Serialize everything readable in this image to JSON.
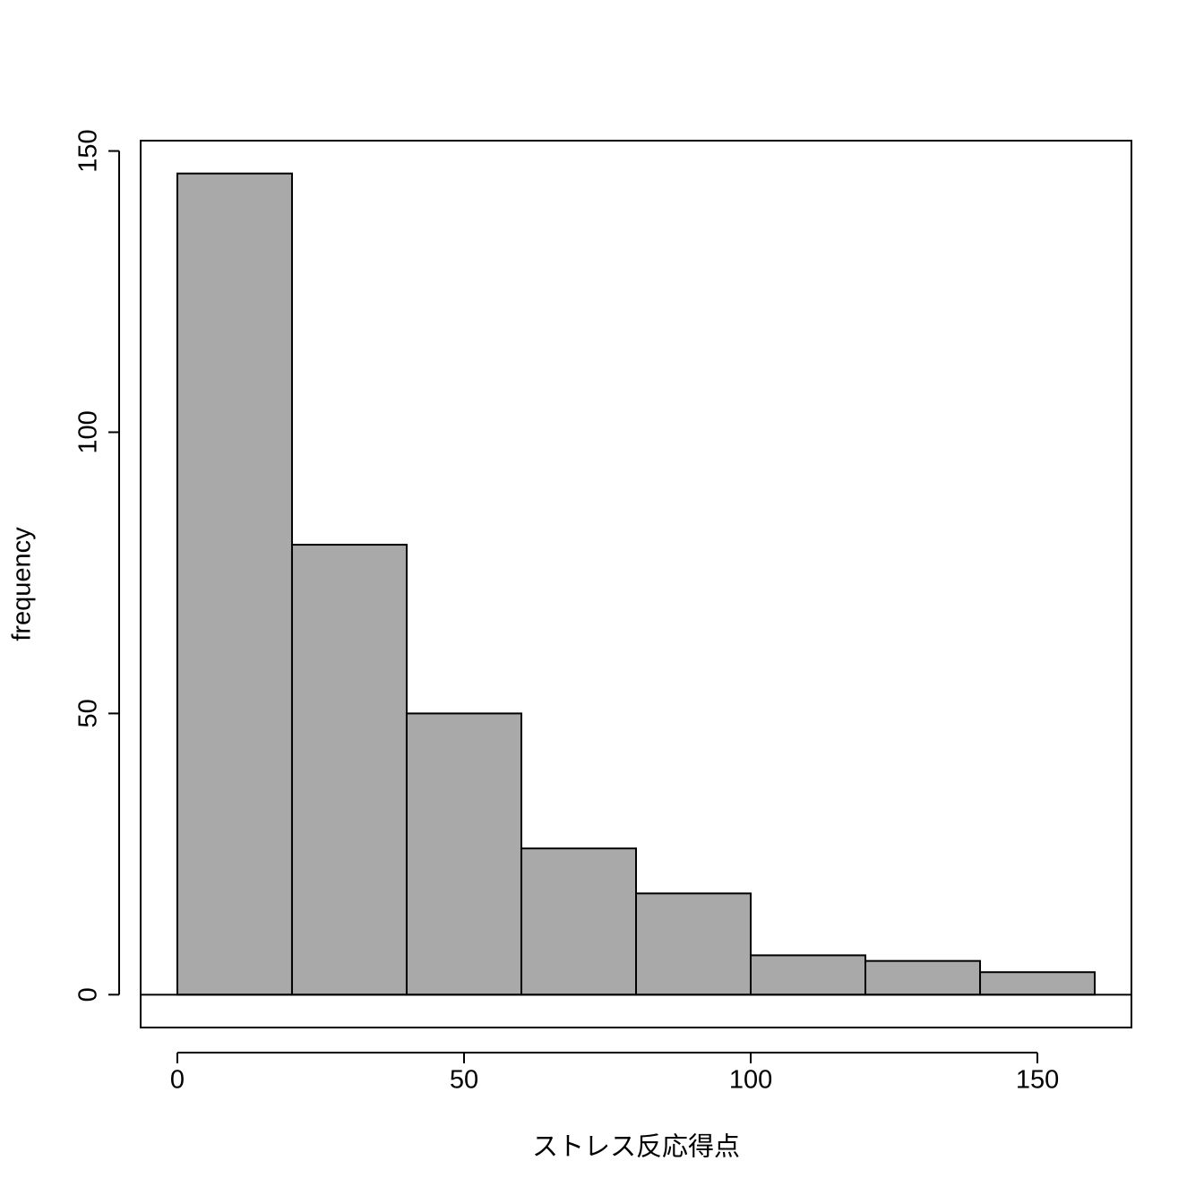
{
  "chart_data": {
    "type": "histogram",
    "xlabel": "ストレス反応得点",
    "ylabel": "frequency",
    "bins": [
      0,
      20,
      40,
      60,
      80,
      100,
      120,
      140,
      160
    ],
    "values": [
      146,
      80,
      50,
      26,
      18,
      7,
      6,
      4
    ],
    "color": "#a9a9a9",
    "xlim": [
      -6.4,
      166.4
    ],
    "ylim": [
      -5.84,
      151.84
    ],
    "xticks": [
      0,
      50,
      100,
      150
    ],
    "yticks": [
      0,
      50,
      100,
      150
    ]
  }
}
